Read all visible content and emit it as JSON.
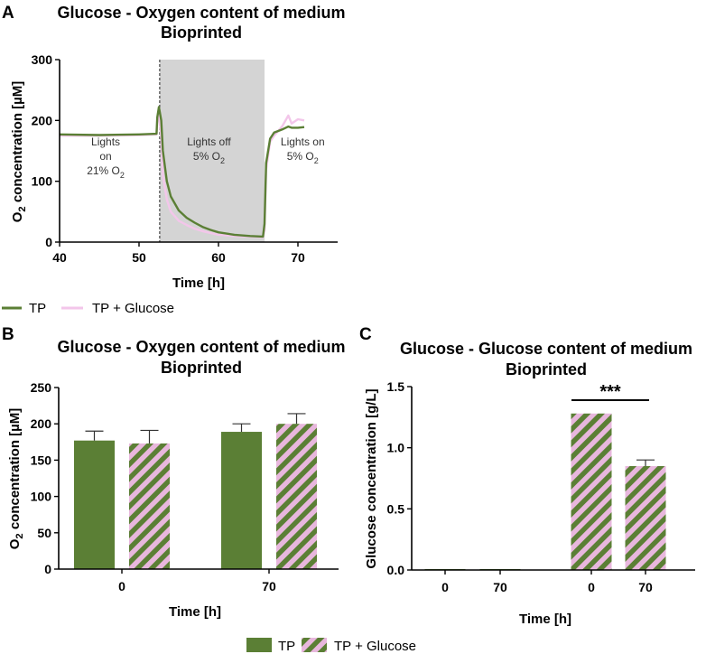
{
  "panels": {
    "a": {
      "letter": "A",
      "title_line1": "Glucose - Oxygen content of medium",
      "title_line2": "Bioprinted"
    },
    "b": {
      "letter": "B",
      "title_line1": "Glucose - Oxygen content of medium",
      "title_line2": "Bioprinted"
    },
    "c": {
      "letter": "C",
      "title_line1": "Glucose - Glucose content of medium",
      "title_line2": "Bioprinted"
    }
  },
  "legend": {
    "tp": "TP",
    "tp_glucose": "TP + Glucose"
  },
  "colors": {
    "tp": "#5b7f35",
    "glucose_stripe": "#e8b7dd",
    "shade": "#d4d4d4",
    "axis": "#000000"
  },
  "chart_data": [
    {
      "id": "A",
      "type": "line",
      "title": "Glucose - Oxygen content of medium Bioprinted",
      "xlabel": "Time [h]",
      "ylabel": "O2 concentration [µM]",
      "xlim": [
        40,
        75
      ],
      "ylim": [
        0,
        300
      ],
      "xticks": [
        40,
        50,
        60,
        70
      ],
      "yticks": [
        0,
        100,
        200,
        300
      ],
      "dashed_line_x": 52.6,
      "shaded_region": [
        52.6,
        65.8
      ],
      "annotations": [
        {
          "x": 45.8,
          "lines": [
            "Lights",
            "on",
            "21% O2"
          ]
        },
        {
          "x": 58.8,
          "lines": [
            "Lights off",
            "5% O2"
          ]
        },
        {
          "x": 70.6,
          "lines": [
            "Lights on",
            "5% O2"
          ]
        }
      ],
      "series": [
        {
          "name": "TP",
          "points": [
            [
              40,
              177
            ],
            [
              45,
              176
            ],
            [
              50,
              177
            ],
            [
              52.2,
              178
            ],
            [
              52.3,
              205
            ],
            [
              52.5,
              222
            ],
            [
              52.8,
              200
            ],
            [
              53.0,
              150
            ],
            [
              53.5,
              100
            ],
            [
              54,
              75
            ],
            [
              55,
              52
            ],
            [
              56,
              40
            ],
            [
              57,
              32
            ],
            [
              58,
              25
            ],
            [
              59,
              20
            ],
            [
              60,
              16
            ],
            [
              62,
              12
            ],
            [
              64,
              10
            ],
            [
              65.6,
              9
            ],
            [
              65.8,
              30
            ],
            [
              66,
              130
            ],
            [
              66.5,
              170
            ],
            [
              67,
              180
            ],
            [
              68,
              185
            ],
            [
              68.8,
              190
            ],
            [
              69.2,
              188
            ],
            [
              70,
              188
            ],
            [
              70.8,
              189
            ]
          ]
        },
        {
          "name": "TP + Glucose",
          "points": [
            [
              40,
              175
            ],
            [
              45,
              175
            ],
            [
              50,
              176
            ],
            [
              52.2,
              177
            ],
            [
              52.3,
              195
            ],
            [
              52.5,
              215
            ],
            [
              52.8,
              170
            ],
            [
              53.0,
              110
            ],
            [
              53.5,
              70
            ],
            [
              54,
              50
            ],
            [
              55,
              35
            ],
            [
              56,
              28
            ],
            [
              57,
              22
            ],
            [
              58,
              18
            ],
            [
              59,
              15
            ],
            [
              60,
              12
            ],
            [
              62,
              10
            ],
            [
              64,
              9
            ],
            [
              65.6,
              8
            ],
            [
              65.8,
              20
            ],
            [
              66,
              120
            ],
            [
              66.5,
              165
            ],
            [
              67,
              175
            ],
            [
              68,
              190
            ],
            [
              68.8,
              208
            ],
            [
              69.2,
              195
            ],
            [
              70,
              202
            ],
            [
              70.8,
              200
            ]
          ]
        }
      ]
    },
    {
      "id": "B",
      "type": "bar",
      "title": "Glucose - Oxygen content of medium Bioprinted",
      "xlabel": "Time [h]",
      "ylabel": "O2 concentration [µM]",
      "ylim": [
        0,
        250
      ],
      "yticks": [
        0,
        50,
        100,
        150,
        200,
        250
      ],
      "categories": [
        "0",
        "70"
      ],
      "series": [
        {
          "name": "TP",
          "values": [
            177,
            189
          ],
          "errors": [
            13,
            11
          ]
        },
        {
          "name": "TP + Glucose",
          "values": [
            173,
            200
          ],
          "errors": [
            18,
            14
          ]
        }
      ]
    },
    {
      "id": "C",
      "type": "bar",
      "title": "Glucose - Glucose content of medium Bioprinted",
      "xlabel": "Time [h]",
      "ylabel": "Glucose concentration [g/L]",
      "ylim": [
        0,
        1.5
      ],
      "yticks": [
        "0.0",
        "0.5",
        "1.0",
        "1.5"
      ],
      "categories": [
        "0",
        "70",
        "0",
        "70"
      ],
      "series": [
        {
          "name": "TP",
          "values": [
            0,
            0,
            null,
            null
          ],
          "errors": [
            0,
            0,
            null,
            null
          ]
        },
        {
          "name": "TP + Glucose",
          "values": [
            null,
            null,
            1.28,
            0.85
          ],
          "errors": [
            null,
            null,
            0,
            0.05
          ]
        }
      ],
      "significance": {
        "label": "***",
        "between": [
          2,
          3
        ]
      }
    }
  ]
}
